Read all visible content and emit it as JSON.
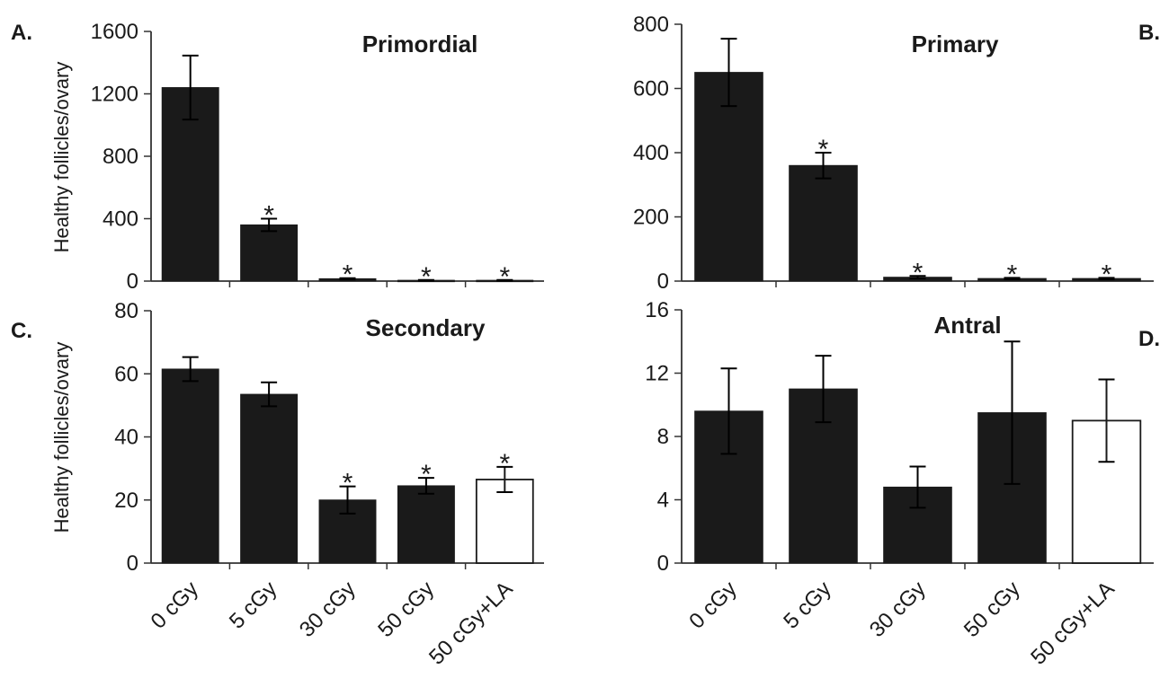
{
  "figure": {
    "ylabel_top": "Healthy follicles/ovary",
    "ylabel_bottom": "Healthy follicles/ovary",
    "colors": {
      "filled": "#1a1a1a",
      "open": "#ffffff",
      "axis": "#333333"
    }
  },
  "chart_data": [
    {
      "type": "bar",
      "panel": "A.",
      "title": "Primordial",
      "categories": [
        "0 cGy",
        "5 cGy",
        "30 cGy",
        "50 cGy",
        "50 cGy+LA"
      ],
      "values": [
        1240,
        360,
        15,
        5,
        5
      ],
      "errors": [
        205,
        40,
        4,
        2,
        2
      ],
      "significant": [
        false,
        true,
        true,
        true,
        true
      ],
      "fill": [
        "filled",
        "filled",
        "filled",
        "filled",
        "filled"
      ],
      "ylim": [
        0,
        1600
      ],
      "yticks": [
        0,
        400,
        800,
        1200,
        1600
      ],
      "yticklabels": [
        "0",
        "400",
        "800",
        "1200",
        "1600"
      ],
      "ylabel": "Healthy follicles/ovary"
    },
    {
      "type": "bar",
      "panel": "B.",
      "title": "Primary",
      "categories": [
        "0 cGy",
        "5 cGy",
        "30 cGy",
        "50 cGy",
        "50 cGy+LA"
      ],
      "values": [
        650,
        360,
        12,
        8,
        8
      ],
      "errors": [
        105,
        40,
        4,
        2,
        2
      ],
      "significant": [
        false,
        true,
        true,
        true,
        true
      ],
      "fill": [
        "filled",
        "filled",
        "filled",
        "filled",
        "filled"
      ],
      "ylim": [
        0,
        800
      ],
      "yticks": [
        0,
        200,
        400,
        600,
        800
      ],
      "yticklabels": [
        "0",
        "200",
        "400",
        "600",
        "800"
      ]
    },
    {
      "type": "bar",
      "panel": "C.",
      "title": "Secondary",
      "categories": [
        "0 cGy",
        "5 cGy",
        "30 cGy",
        "50 cGy",
        "50 cGy+LA"
      ],
      "values": [
        61.5,
        53.5,
        20,
        24.5,
        26.5
      ],
      "errors": [
        3.8,
        3.8,
        4.3,
        2.5,
        4.0
      ],
      "significant": [
        false,
        false,
        true,
        true,
        true
      ],
      "fill": [
        "filled",
        "filled",
        "filled",
        "filled",
        "open"
      ],
      "ylim": [
        0,
        80
      ],
      "yticks": [
        0,
        20,
        40,
        60,
        80
      ],
      "yticklabels": [
        "0",
        "20",
        "40",
        "60",
        "80"
      ],
      "ylabel": "Healthy follicles/ovary"
    },
    {
      "type": "bar",
      "panel": "D.",
      "title": "Antral",
      "categories": [
        "0 cGy",
        "5 cGy",
        "30 cGy",
        "50 cGy",
        "50 cGy+LA"
      ],
      "values": [
        9.6,
        11.0,
        4.8,
        9.5,
        9.0
      ],
      "errors": [
        2.7,
        2.1,
        1.3,
        4.5,
        2.6
      ],
      "significant": [
        false,
        false,
        false,
        false,
        false
      ],
      "fill": [
        "filled",
        "filled",
        "filled",
        "filled",
        "open"
      ],
      "ylim": [
        0,
        16
      ],
      "yticks": [
        0,
        4,
        8,
        12,
        16
      ],
      "yticklabels": [
        "0",
        "4",
        "8",
        "12",
        "16"
      ]
    }
  ]
}
